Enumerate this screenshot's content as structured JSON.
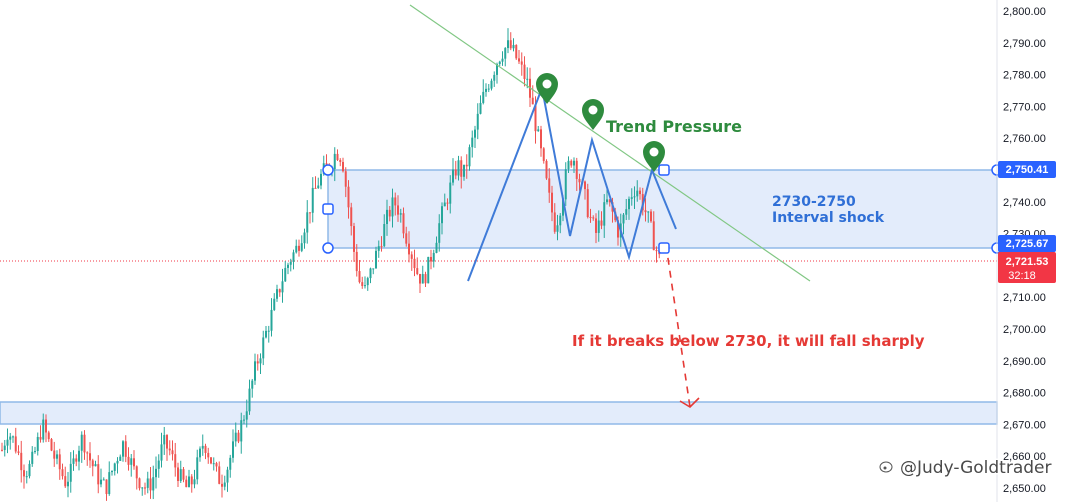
{
  "chart_data": {
    "type": "candlestick",
    "title": "",
    "xlabel": "",
    "ylabel": "",
    "ylim": [
      2645,
      2805
    ],
    "y_ticks": [
      "2,800.00",
      "2,790.00",
      "2,780.00",
      "2,770.00",
      "2,760.00",
      "2,750.00",
      "2,740.00",
      "2,730.00",
      "2,720.00",
      "2,710.00",
      "2,700.00",
      "2,690.00",
      "2,680.00",
      "2,670.00",
      "2,660.00",
      "2,650.00"
    ],
    "y_tick_values": [
      2800,
      2790,
      2780,
      2770,
      2760,
      2750,
      2740,
      2730,
      2720,
      2710,
      2700,
      2690,
      2680,
      2670,
      2660,
      2650
    ],
    "grid": false,
    "candle_colors": {
      "up": "#26a69a",
      "down": "#ef5350"
    },
    "price_path": [
      2662,
      2668,
      2665,
      2660,
      2655,
      2657,
      2663,
      2670,
      2665,
      2660,
      2656,
      2652,
      2655,
      2662,
      2666,
      2660,
      2656,
      2652,
      2650,
      2655,
      2660,
      2664,
      2660,
      2655,
      2652,
      2650,
      2652,
      2658,
      2664,
      2662,
      2657,
      2653,
      2650,
      2652,
      2658,
      2665,
      2660,
      2655,
      2652,
      2656,
      2662,
      2667,
      2673,
      2680,
      2688,
      2694,
      2700,
      2706,
      2712,
      2718,
      2722,
      2725,
      2730,
      2736,
      2742,
      2747,
      2750,
      2752,
      2756,
      2754,
      2740,
      2725,
      2715,
      2712,
      2718,
      2724,
      2730,
      2736,
      2740,
      2737,
      2730,
      2724,
      2718,
      2715,
      2720,
      2727,
      2734,
      2740,
      2746,
      2752,
      2748,
      2755,
      2762,
      2770,
      2776,
      2780,
      2785,
      2788,
      2789,
      2786,
      2782,
      2778,
      2770,
      2760,
      2750,
      2740,
      2732,
      2740,
      2750,
      2755,
      2748,
      2742,
      2735,
      2730,
      2735,
      2740,
      2736,
      2730,
      2736,
      2742,
      2745,
      2740,
      2735,
      2728,
      2722
    ],
    "levels": [
      {
        "value": 2750.41,
        "label": "2,750.41",
        "color": "#2962ff"
      },
      {
        "value": 2725.67,
        "label": "2,725.67",
        "color": "#2962ff"
      },
      {
        "value": 2721.53,
        "label": "2,721.53",
        "sub_label": "32:18",
        "color": "#f23645"
      }
    ],
    "zones": [
      {
        "name": "interval-zone",
        "from": 2725.67,
        "to": 2750.41,
        "text_line1": "2730-2750",
        "text_line2": "Interval shock"
      },
      {
        "name": "support-zone",
        "from": 2670,
        "to": 2677
      }
    ],
    "annotations": {
      "trend_label": "Trend Pressure",
      "projection_note": "If it breaks below 2730, it will fall sharply"
    },
    "trendline": {
      "start_value": 2803,
      "end_value": 2715,
      "color": "#81c784"
    },
    "pattern_points": [
      2715,
      2782,
      2730,
      2760,
      2722,
      2750,
      2728
    ],
    "projection": {
      "start_value": 2727,
      "end_value": 2675
    }
  },
  "watermark": {
    "text": "@Judy-Goldtrader",
    "icon": "weibo-icon"
  },
  "colors": {
    "zone_fill": "#e3ecfb",
    "zone_border": "#90b9e8",
    "pin": "#2e8b3e",
    "trend_text": "#2e8b3e",
    "note_text": "#e53935",
    "pattern": "#3f7bd8"
  }
}
